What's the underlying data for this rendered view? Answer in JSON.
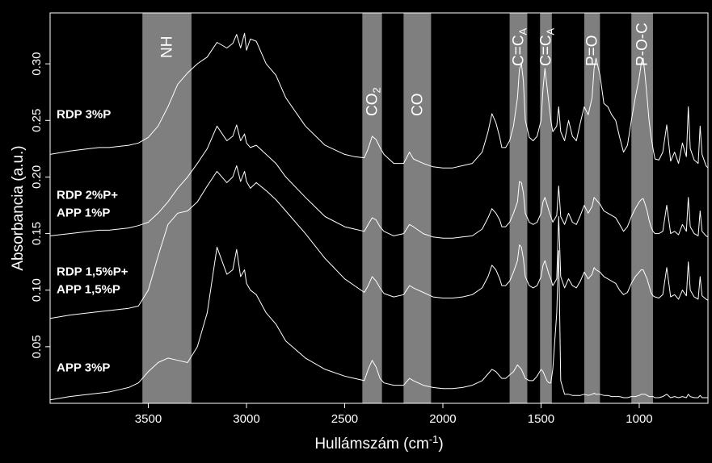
{
  "chart_data": {
    "type": "line",
    "title": "",
    "xlabel": "Hullámszám (cm",
    "xlabel_sup": "-1",
    "xlabel_close": ")",
    "ylabel": "Absorbancia (a.u.)",
    "xlim": [
      4000,
      650
    ],
    "ylim": [
      0,
      0.345
    ],
    "x_reversed": true,
    "xticks": [
      {
        "value": 3500,
        "label": "3500"
      },
      {
        "value": 3000,
        "label": "3000"
      },
      {
        "value": 2500,
        "label": "2500"
      },
      {
        "value": 2000,
        "label": "2000"
      },
      {
        "value": 1500,
        "label": "1500"
      },
      {
        "value": 1000,
        "label": "1000"
      }
    ],
    "yticks": [
      {
        "value": 0.05,
        "label": "0.05"
      },
      {
        "value": 0.1,
        "label": "0.10"
      },
      {
        "value": 0.15,
        "label": "0.15"
      },
      {
        "value": 0.2,
        "label": "0.20"
      },
      {
        "value": 0.25,
        "label": "0.25"
      },
      {
        "value": 0.3,
        "label": "0.30"
      }
    ],
    "line_color": "#ffffff",
    "band_color": "#7f7f7f",
    "bands": [
      {
        "from": 3530,
        "to": 3280,
        "label": "NH",
        "sub": ""
      },
      {
        "from": 2410,
        "to": 2310,
        "label": "CO",
        "sub": "2"
      },
      {
        "from": 2200,
        "to": 2060,
        "label": "CO",
        "sub": ""
      },
      {
        "from": 1660,
        "to": 1570,
        "label": "C=C",
        "sub": "A"
      },
      {
        "from": 1505,
        "to": 1445,
        "label": "C=C",
        "sub": "A"
      },
      {
        "from": 1280,
        "to": 1200,
        "label": "P=O",
        "sub": ""
      },
      {
        "from": 1040,
        "to": 930,
        "label": "P-O-C",
        "sub": ""
      }
    ],
    "series": [
      {
        "name": "RDP 3%P",
        "label_lines": [
          "RDP 3%P"
        ],
        "label_value": 0.252,
        "x": [
          4000,
          3900,
          3800,
          3750,
          3700,
          3650,
          3600,
          3550,
          3500,
          3450,
          3400,
          3350,
          3300,
          3250,
          3200,
          3150,
          3100,
          3070,
          3050,
          3030,
          3010,
          3000,
          2980,
          2950,
          2900,
          2850,
          2800,
          2700,
          2600,
          2500,
          2450,
          2400,
          2380,
          2360,
          2340,
          2320,
          2300,
          2250,
          2200,
          2170,
          2150,
          2100,
          2050,
          2000,
          1950,
          1900,
          1850,
          1800,
          1770,
          1750,
          1730,
          1710,
          1700,
          1680,
          1660,
          1640,
          1620,
          1610,
          1600,
          1590,
          1580,
          1560,
          1540,
          1520,
          1500,
          1490,
          1480,
          1470,
          1460,
          1450,
          1440,
          1420,
          1410,
          1400,
          1380,
          1360,
          1340,
          1320,
          1300,
          1280,
          1260,
          1240,
          1230,
          1220,
          1200,
          1180,
          1160,
          1140,
          1120,
          1100,
          1080,
          1060,
          1040,
          1020,
          1000,
          990,
          980,
          970,
          960,
          950,
          940,
          930,
          920,
          900,
          880,
          860,
          840,
          820,
          800,
          780,
          760,
          750,
          740,
          720,
          700,
          690,
          680,
          660,
          650
        ],
        "y": [
          0.22,
          0.223,
          0.225,
          0.226,
          0.226,
          0.227,
          0.228,
          0.23,
          0.235,
          0.245,
          0.262,
          0.282,
          0.292,
          0.3,
          0.306,
          0.319,
          0.314,
          0.318,
          0.326,
          0.314,
          0.327,
          0.312,
          0.322,
          0.32,
          0.3,
          0.29,
          0.27,
          0.245,
          0.228,
          0.22,
          0.218,
          0.217,
          0.225,
          0.236,
          0.233,
          0.226,
          0.22,
          0.212,
          0.212,
          0.222,
          0.216,
          0.212,
          0.209,
          0.208,
          0.208,
          0.21,
          0.212,
          0.222,
          0.24,
          0.256,
          0.248,
          0.235,
          0.226,
          0.226,
          0.232,
          0.245,
          0.27,
          0.295,
          0.3,
          0.285,
          0.25,
          0.235,
          0.232,
          0.236,
          0.25,
          0.278,
          0.296,
          0.28,
          0.265,
          0.25,
          0.24,
          0.245,
          0.262,
          0.24,
          0.232,
          0.25,
          0.236,
          0.232,
          0.248,
          0.262,
          0.255,
          0.27,
          0.296,
          0.305,
          0.29,
          0.265,
          0.262,
          0.255,
          0.25,
          0.235,
          0.222,
          0.228,
          0.25,
          0.27,
          0.288,
          0.3,
          0.305,
          0.29,
          0.27,
          0.25,
          0.236,
          0.225,
          0.216,
          0.215,
          0.222,
          0.246,
          0.214,
          0.222,
          0.212,
          0.23,
          0.218,
          0.262,
          0.225,
          0.215,
          0.212,
          0.245,
          0.22,
          0.21,
          0.208
        ]
      },
      {
        "name": "RDP 2%P+ APP 1%P",
        "label_lines": [
          "RDP 2%P+",
          "APP 1%P"
        ],
        "label_value": 0.173,
        "x": [
          4000,
          3900,
          3800,
          3750,
          3700,
          3650,
          3600,
          3550,
          3500,
          3450,
          3400,
          3350,
          3300,
          3250,
          3200,
          3150,
          3100,
          3070,
          3050,
          3030,
          3010,
          3000,
          2980,
          2950,
          2900,
          2850,
          2800,
          2700,
          2600,
          2500,
          2450,
          2400,
          2380,
          2360,
          2340,
          2320,
          2300,
          2250,
          2200,
          2170,
          2150,
          2100,
          2050,
          2000,
          1950,
          1900,
          1850,
          1800,
          1770,
          1750,
          1730,
          1710,
          1700,
          1680,
          1660,
          1640,
          1620,
          1610,
          1600,
          1590,
          1580,
          1560,
          1540,
          1520,
          1500,
          1490,
          1480,
          1470,
          1460,
          1450,
          1440,
          1420,
          1410,
          1400,
          1380,
          1360,
          1340,
          1320,
          1300,
          1280,
          1260,
          1240,
          1230,
          1220,
          1200,
          1180,
          1160,
          1140,
          1120,
          1100,
          1080,
          1060,
          1040,
          1020,
          1000,
          990,
          980,
          970,
          960,
          950,
          940,
          930,
          920,
          900,
          880,
          860,
          840,
          820,
          800,
          780,
          760,
          750,
          740,
          720,
          700,
          690,
          680,
          660,
          650
        ],
        "y": [
          0.148,
          0.15,
          0.152,
          0.153,
          0.153,
          0.154,
          0.155,
          0.157,
          0.16,
          0.168,
          0.178,
          0.19,
          0.2,
          0.212,
          0.225,
          0.245,
          0.232,
          0.236,
          0.246,
          0.232,
          0.238,
          0.23,
          0.226,
          0.228,
          0.22,
          0.212,
          0.2,
          0.182,
          0.165,
          0.156,
          0.154,
          0.152,
          0.158,
          0.164,
          0.162,
          0.156,
          0.152,
          0.148,
          0.15,
          0.158,
          0.156,
          0.15,
          0.147,
          0.146,
          0.146,
          0.147,
          0.148,
          0.154,
          0.164,
          0.172,
          0.168,
          0.162,
          0.156,
          0.156,
          0.16,
          0.168,
          0.178,
          0.196,
          0.195,
          0.186,
          0.168,
          0.16,
          0.158,
          0.16,
          0.168,
          0.178,
          0.182,
          0.176,
          0.17,
          0.165,
          0.16,
          0.166,
          0.192,
          0.165,
          0.158,
          0.168,
          0.16,
          0.158,
          0.166,
          0.175,
          0.168,
          0.174,
          0.182,
          0.18,
          0.176,
          0.17,
          0.168,
          0.166,
          0.164,
          0.158,
          0.152,
          0.156,
          0.165,
          0.172,
          0.178,
          0.18,
          0.181,
          0.176,
          0.17,
          0.162,
          0.156,
          0.152,
          0.15,
          0.15,
          0.152,
          0.175,
          0.15,
          0.152,
          0.149,
          0.158,
          0.152,
          0.182,
          0.156,
          0.15,
          0.148,
          0.17,
          0.152,
          0.148,
          0.147
        ]
      },
      {
        "name": "RDP 1,5%P+ APP 1,5%P",
        "label_lines": [
          "RDP 1,5%P+",
          "APP 1,5%P"
        ],
        "label_value": 0.105,
        "x": [
          4000,
          3900,
          3800,
          3750,
          3700,
          3650,
          3600,
          3550,
          3500,
          3450,
          3400,
          3350,
          3300,
          3250,
          3200,
          3150,
          3100,
          3070,
          3050,
          3030,
          3010,
          3000,
          2980,
          2950,
          2900,
          2850,
          2800,
          2700,
          2600,
          2500,
          2450,
          2400,
          2380,
          2360,
          2340,
          2320,
          2300,
          2250,
          2200,
          2170,
          2150,
          2100,
          2050,
          2000,
          1950,
          1900,
          1850,
          1800,
          1770,
          1750,
          1730,
          1710,
          1700,
          1680,
          1660,
          1640,
          1620,
          1610,
          1600,
          1590,
          1580,
          1560,
          1540,
          1520,
          1500,
          1490,
          1480,
          1470,
          1460,
          1450,
          1440,
          1420,
          1410,
          1400,
          1380,
          1360,
          1340,
          1320,
          1300,
          1280,
          1260,
          1240,
          1230,
          1220,
          1200,
          1180,
          1160,
          1140,
          1120,
          1100,
          1080,
          1060,
          1040,
          1020,
          1000,
          990,
          980,
          970,
          960,
          950,
          940,
          930,
          920,
          900,
          880,
          860,
          840,
          820,
          800,
          780,
          760,
          750,
          740,
          720,
          700,
          690,
          680,
          660,
          650
        ],
        "y": [
          0.075,
          0.078,
          0.08,
          0.081,
          0.082,
          0.083,
          0.084,
          0.086,
          0.1,
          0.13,
          0.158,
          0.168,
          0.17,
          0.178,
          0.192,
          0.205,
          0.195,
          0.2,
          0.21,
          0.196,
          0.205,
          0.196,
          0.19,
          0.195,
          0.188,
          0.18,
          0.17,
          0.15,
          0.128,
          0.11,
          0.104,
          0.098,
          0.104,
          0.112,
          0.108,
          0.102,
          0.097,
          0.094,
          0.096,
          0.104,
          0.102,
          0.098,
          0.094,
          0.093,
          0.093,
          0.094,
          0.096,
          0.102,
          0.112,
          0.122,
          0.118,
          0.11,
          0.104,
          0.104,
          0.108,
          0.116,
          0.126,
          0.14,
          0.138,
          0.128,
          0.112,
          0.104,
          0.102,
          0.104,
          0.112,
          0.122,
          0.126,
          0.12,
          0.114,
          0.11,
          0.104,
          0.11,
          0.165,
          0.112,
          0.102,
          0.11,
          0.104,
          0.102,
          0.108,
          0.116,
          0.11,
          0.114,
          0.12,
          0.118,
          0.116,
          0.112,
          0.11,
          0.108,
          0.106,
          0.1,
          0.096,
          0.098,
          0.106,
          0.112,
          0.116,
          0.118,
          0.118,
          0.114,
          0.11,
          0.104,
          0.098,
          0.095,
          0.094,
          0.093,
          0.096,
          0.12,
          0.094,
          0.096,
          0.092,
          0.1,
          0.095,
          0.125,
          0.1,
          0.094,
          0.092,
          0.112,
          0.095,
          0.092,
          0.091
        ]
      },
      {
        "name": "APP 3%P",
        "label_lines": [
          "APP 3%P"
        ],
        "label_value": 0.028,
        "x": [
          4000,
          3900,
          3800,
          3750,
          3700,
          3650,
          3600,
          3550,
          3500,
          3450,
          3400,
          3350,
          3300,
          3250,
          3200,
          3150,
          3100,
          3070,
          3050,
          3030,
          3010,
          3000,
          2980,
          2950,
          2900,
          2850,
          2800,
          2700,
          2600,
          2500,
          2450,
          2400,
          2380,
          2360,
          2340,
          2320,
          2300,
          2250,
          2200,
          2170,
          2150,
          2100,
          2050,
          2000,
          1950,
          1900,
          1850,
          1800,
          1770,
          1750,
          1730,
          1710,
          1700,
          1680,
          1660,
          1640,
          1620,
          1610,
          1600,
          1590,
          1580,
          1560,
          1540,
          1520,
          1500,
          1490,
          1480,
          1470,
          1460,
          1450,
          1440,
          1420,
          1410,
          1400,
          1380,
          1360,
          1340,
          1320,
          1300,
          1280,
          1260,
          1240,
          1230,
          1220,
          1200,
          1180,
          1160,
          1140,
          1120,
          1100,
          1080,
          1060,
          1040,
          1020,
          1000,
          990,
          980,
          970,
          960,
          950,
          940,
          930,
          920,
          900,
          880,
          860,
          840,
          820,
          800,
          780,
          760,
          750,
          740,
          720,
          700,
          690,
          680,
          660,
          650
        ],
        "y": [
          0.003,
          0.006,
          0.008,
          0.009,
          0.01,
          0.012,
          0.014,
          0.018,
          0.028,
          0.036,
          0.04,
          0.038,
          0.036,
          0.05,
          0.08,
          0.138,
          0.114,
          0.118,
          0.136,
          0.112,
          0.118,
          0.106,
          0.1,
          0.096,
          0.08,
          0.07,
          0.055,
          0.04,
          0.03,
          0.024,
          0.022,
          0.02,
          0.03,
          0.038,
          0.032,
          0.022,
          0.018,
          0.016,
          0.016,
          0.022,
          0.02,
          0.016,
          0.014,
          0.013,
          0.013,
          0.014,
          0.016,
          0.02,
          0.026,
          0.03,
          0.028,
          0.024,
          0.022,
          0.022,
          0.025,
          0.028,
          0.034,
          0.032,
          0.03,
          0.026,
          0.022,
          0.02,
          0.02,
          0.024,
          0.03,
          0.028,
          0.024,
          0.02,
          0.018,
          0.018,
          0.03,
          0.08,
          0.135,
          0.02,
          0.008,
          0.008,
          0.007,
          0.007,
          0.007,
          0.008,
          0.007,
          0.008,
          0.009,
          0.008,
          0.008,
          0.007,
          0.007,
          0.006,
          0.006,
          0.006,
          0.005,
          0.005,
          0.006,
          0.006,
          0.007,
          0.008,
          0.008,
          0.008,
          0.007,
          0.006,
          0.006,
          0.006,
          0.005,
          0.005,
          0.006,
          0.008,
          0.005,
          0.006,
          0.005,
          0.006,
          0.005,
          0.008,
          0.006,
          0.005,
          0.005,
          0.007,
          0.005,
          0.005,
          0.005
        ]
      }
    ]
  }
}
